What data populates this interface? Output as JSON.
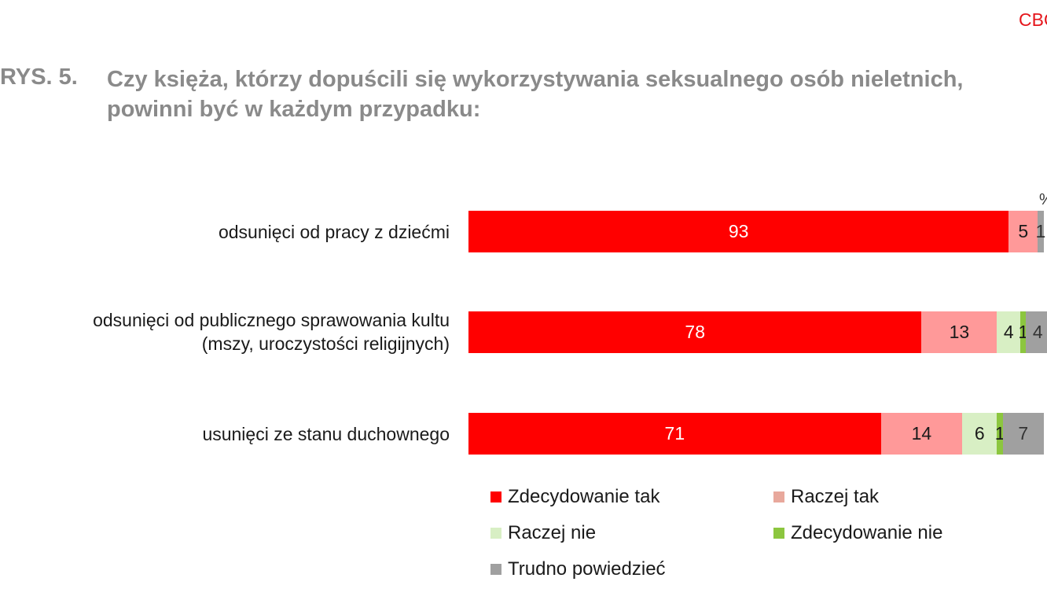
{
  "brand": "CBO",
  "figure_label": "RYS. 5.",
  "title_line1": "Czy księża, którzy dopuścili się wykorzystywania seksualnego osób nieletnich,",
  "title_line2": "powinni być w każdym przypadku:",
  "chart_data": {
    "type": "bar",
    "orientation": "horizontal",
    "stacked": true,
    "unit": "%",
    "categories": [
      [
        "odsunięci od pracy z dziećmi"
      ],
      [
        "odsunięci od publicznego sprawowania kultu",
        "(mszy, uroczystości religijnych)"
      ],
      [
        "usunięci ze stanu duchownego"
      ]
    ],
    "series": [
      {
        "name": "Zdecydowanie tak",
        "color": "#ff0000",
        "text_color": "#ffffff",
        "values": [
          93,
          78,
          71
        ]
      },
      {
        "name": "Raczej tak",
        "color": "#ff9999",
        "text_color": "#1a1a1a",
        "values": [
          5,
          13,
          14
        ]
      },
      {
        "name": "Raczej nie",
        "color": "#d8efc4",
        "text_color": "#1a1a1a",
        "values": [
          0,
          4,
          6
        ]
      },
      {
        "name": "Zdecydowanie nie",
        "color": "#8cc63f",
        "text_color": "#1a1a1a",
        "values": [
          0,
          1,
          1
        ]
      },
      {
        "name": "Trudno powiedzieć",
        "color": "#a0a0a0",
        "text_color": "#333333",
        "values": [
          1,
          4,
          7
        ]
      }
    ],
    "legend_colors": [
      "#ff0000",
      "#e8a89c",
      "#d8efc4",
      "#8cc63f",
      "#a0a0a0"
    ],
    "legend_position": "bottom",
    "grid": false
  }
}
